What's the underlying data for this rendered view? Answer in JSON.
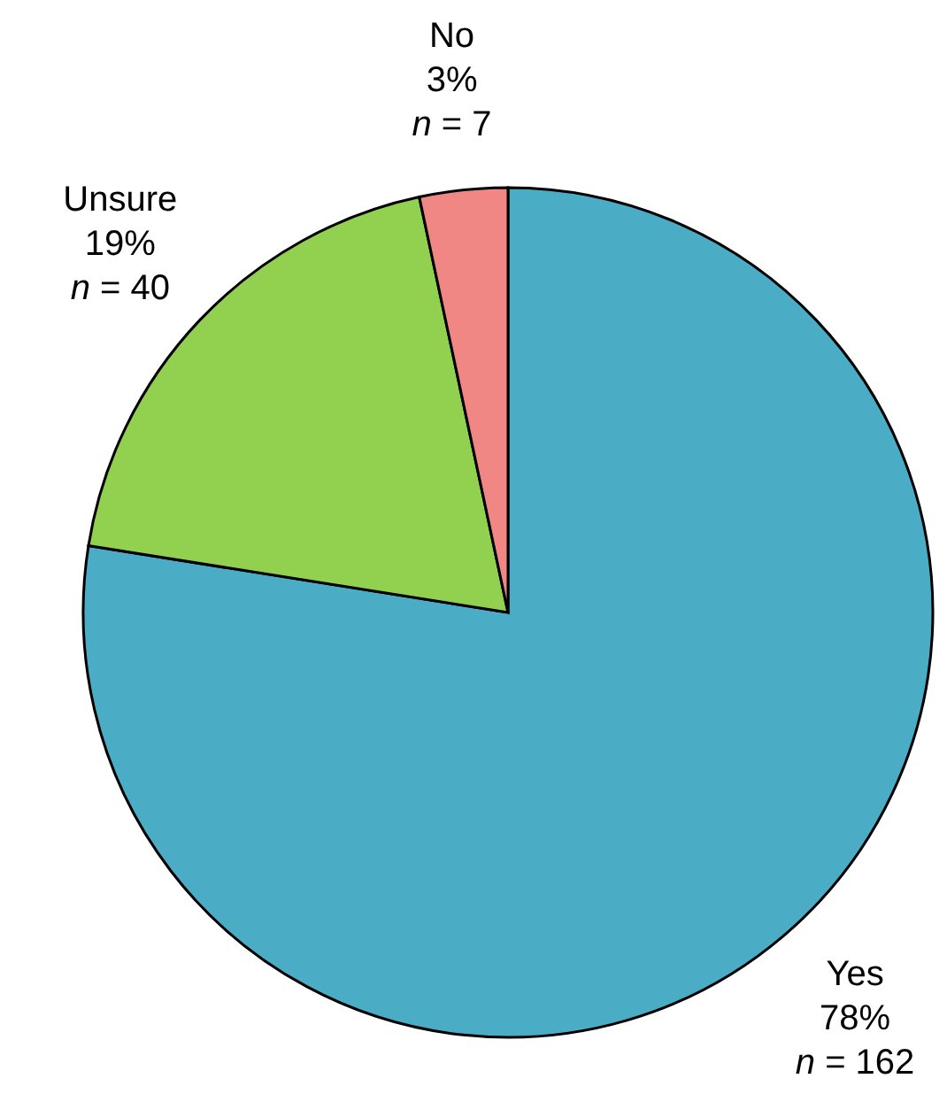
{
  "chart_data": {
    "type": "pie",
    "categories": [
      "Yes",
      "Unsure",
      "No"
    ],
    "values": [
      162,
      40,
      7
    ],
    "colors": [
      "#4bacc6",
      "#92d050",
      "#f08784"
    ],
    "value_labels": [
      "78%\nn = 162",
      "19%\nn = 40",
      "3%\nn = 7"
    ],
    "legend": false
  }
}
